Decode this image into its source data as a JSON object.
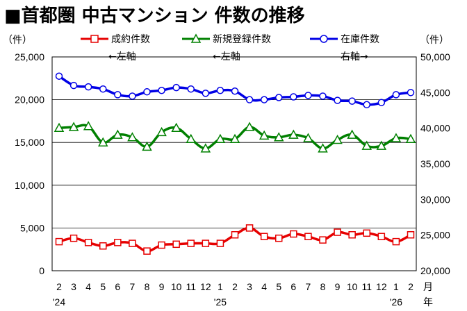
{
  "title": "■首都圏 中古マンション 件数の推移",
  "left_unit": "（件）",
  "right_unit": "（件）",
  "x_axis_unit_top": "月",
  "x_axis_unit_bottom": "年",
  "legend": [
    {
      "label": "成約件数",
      "note": "←左軸",
      "color": "#e60000",
      "marker": "square"
    },
    {
      "label": "新規登録件数",
      "note": "←左軸",
      "color": "#008000",
      "marker": "triangle"
    },
    {
      "label": "在庫件数",
      "note": "右軸→",
      "color": "#0000e6",
      "marker": "circle"
    }
  ],
  "chart_data": {
    "type": "line",
    "title": "■首都圏 中古マンション 件数の推移",
    "x": [
      "2",
      "3",
      "4",
      "5",
      "6",
      "7",
      "8",
      "9",
      "10",
      "11",
      "12",
      "1",
      "2",
      "3",
      "4",
      "5",
      "6",
      "7",
      "8",
      "9",
      "10",
      "11",
      "12",
      "1",
      "2"
    ],
    "year_labels": [
      {
        "index": 0,
        "label": "'24"
      },
      {
        "index": 11,
        "label": "'25"
      },
      {
        "index": 23,
        "label": "'26"
      }
    ],
    "left_axis": {
      "ylim": [
        0,
        25000
      ],
      "ticks": [
        0,
        5000,
        10000,
        15000,
        20000,
        25000
      ],
      "tick_labels": [
        "0",
        "5,000",
        "10,000",
        "15,000",
        "20,000",
        "25,000"
      ]
    },
    "right_axis": {
      "ylim": [
        20000,
        50000
      ],
      "ticks": [
        20000,
        25000,
        30000,
        35000,
        40000,
        45000,
        50000
      ],
      "tick_labels": [
        "20,000",
        "25,000",
        "30,000",
        "35,000",
        "40,000",
        "45,000",
        "50,000"
      ]
    },
    "grid": "horizontal",
    "legend_position": "top",
    "series": [
      {
        "name": "成約件数",
        "axis": "left",
        "color": "#e60000",
        "marker": "square",
        "values": [
          3400,
          3800,
          3300,
          2900,
          3300,
          3200,
          2300,
          3000,
          3100,
          3200,
          3200,
          3200,
          4200,
          5000,
          4000,
          3800,
          4300,
          4000,
          3600,
          4500,
          4200,
          4400,
          4000,
          3400,
          4200
        ]
      },
      {
        "name": "新規登録件数",
        "axis": "left",
        "color": "#008000",
        "marker": "triangle",
        "values": [
          16700,
          16800,
          16900,
          15000,
          15900,
          15600,
          14500,
          16200,
          16700,
          15400,
          14300,
          15400,
          15400,
          16800,
          15800,
          15600,
          15900,
          15500,
          14300,
          15300,
          15900,
          14600,
          14600,
          15500,
          15400
        ]
      },
      {
        "name": "在庫件数",
        "axis": "right",
        "color": "#0000e6",
        "marker": "circle",
        "values": [
          47300,
          46000,
          45800,
          45500,
          44700,
          44500,
          45100,
          45300,
          45700,
          45500,
          44900,
          45300,
          45200,
          44000,
          44000,
          44300,
          44400,
          44600,
          44500,
          43900,
          43800,
          43300,
          43600,
          44700,
          45000
        ]
      }
    ]
  }
}
